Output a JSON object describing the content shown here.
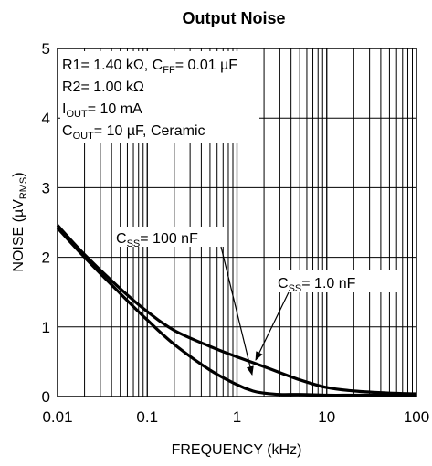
{
  "chart_data": {
    "type": "line",
    "title": "Output Noise",
    "xlabel": "FREQUENCY (kHz)",
    "ylabel_parts": [
      "NOISE (µV",
      "RMS",
      ")"
    ],
    "x_scale": "log",
    "xlim": [
      0.01,
      100
    ],
    "ylim": [
      0,
      5
    ],
    "grid": true,
    "x_ticks": [
      0.01,
      0.1,
      1,
      10,
      100
    ],
    "x_tick_labels": [
      "0.01",
      "0.1",
      "1",
      "10",
      "100"
    ],
    "y_ticks": [
      0,
      1,
      2,
      3,
      4,
      5
    ],
    "y_tick_labels": [
      "0",
      "1",
      "2",
      "3",
      "4",
      "5"
    ],
    "conditions": [
      {
        "parts": [
          [
            "R1= 1.40 kΩ, C",
            ""
          ],
          [
            "FF",
            "sub"
          ],
          [
            "= 0.01 µF",
            ""
          ]
        ]
      },
      {
        "parts": [
          [
            "R2= 1.00 kΩ",
            ""
          ]
        ]
      },
      {
        "parts": [
          [
            "I",
            ""
          ],
          [
            "OUT",
            "sub"
          ],
          [
            "= 10 mA",
            ""
          ]
        ]
      },
      {
        "parts": [
          [
            "C",
            ""
          ],
          [
            "OUT",
            "sub"
          ],
          [
            "= 10 µF, Ceramic",
            ""
          ]
        ]
      }
    ],
    "series": [
      {
        "label_parts": [
          [
            "C",
            ""
          ],
          [
            "SS",
            "sub"
          ],
          [
            "= 100 nF",
            ""
          ]
        ],
        "x": [
          0.01,
          0.02,
          0.05,
          0.1,
          0.2,
          0.5,
          1,
          1.5,
          2,
          3,
          5,
          10,
          20,
          50,
          100
        ],
        "y": [
          2.42,
          2.0,
          1.48,
          1.1,
          0.75,
          0.38,
          0.17,
          0.08,
          0.05,
          0.03,
          0.03,
          0.02,
          0.02,
          0.02,
          0.02
        ]
      },
      {
        "label_parts": [
          [
            "C",
            ""
          ],
          [
            "SS",
            "sub"
          ],
          [
            "= 1.0 nF",
            ""
          ]
        ],
        "x": [
          0.01,
          0.02,
          0.05,
          0.1,
          0.2,
          0.5,
          1,
          2,
          5,
          10,
          20,
          50,
          100
        ],
        "y": [
          2.46,
          2.04,
          1.55,
          1.22,
          0.95,
          0.72,
          0.57,
          0.43,
          0.24,
          0.13,
          0.08,
          0.05,
          0.04
        ]
      }
    ]
  }
}
